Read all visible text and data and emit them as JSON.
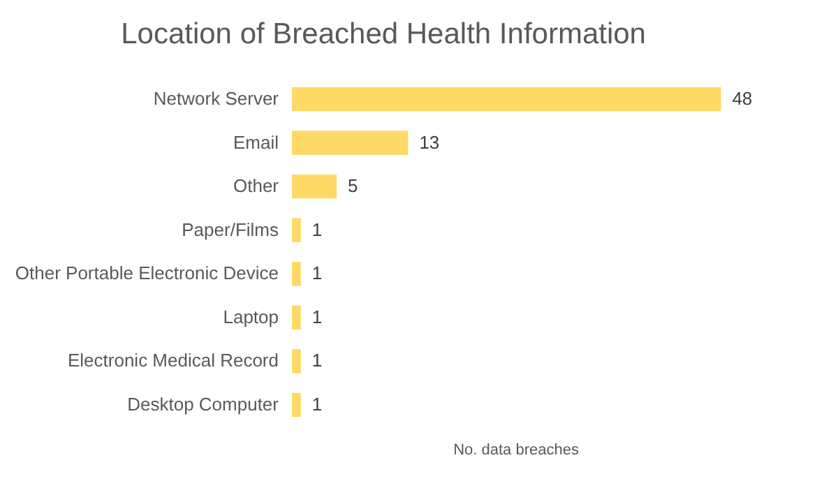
{
  "chart_data": {
    "type": "bar",
    "orientation": "horizontal",
    "title": "Location of Breached Health Information",
    "xlabel": "No. data breaches",
    "categories": [
      "Network Server",
      "Email",
      "Other",
      "Paper/Films",
      "Other Portable Electronic Device",
      "Laptop",
      "Electronic Medical Record",
      "Desktop Computer"
    ],
    "values": [
      48,
      13,
      5,
      1,
      1,
      1,
      1,
      1
    ],
    "color": "#ffd966",
    "data_labels": true,
    "grid": false
  }
}
